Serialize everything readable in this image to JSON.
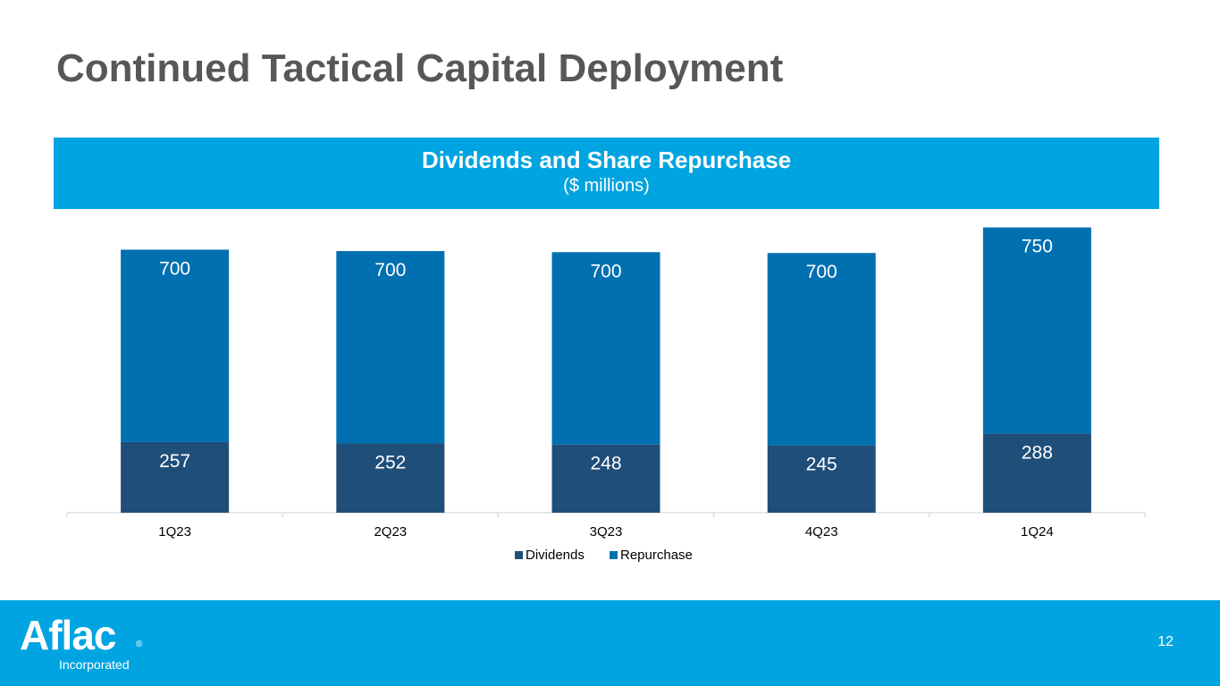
{
  "page": {
    "title": "Continued Tactical Capital Deployment",
    "page_number": "12"
  },
  "logo": {
    "wordmark": "Aflac",
    "registered": "®",
    "subtitle": "Incorporated"
  },
  "colors": {
    "accent": "#00a4e0",
    "dividends": "#1f4e79",
    "repurchase": "#0070b0",
    "title_text": "#575757"
  },
  "chart_data": {
    "type": "bar",
    "stacked": true,
    "title": "Dividends and Share Repurchase",
    "subtitle": "($ millions)",
    "categories": [
      "1Q23",
      "2Q23",
      "3Q23",
      "4Q23",
      "1Q24"
    ],
    "series": [
      {
        "name": "Dividends",
        "values": [
          257,
          252,
          248,
          245,
          288
        ]
      },
      {
        "name": "Repurchase",
        "values": [
          700,
          700,
          700,
          700,
          750
        ]
      }
    ],
    "legend_position": "bottom",
    "grid": false,
    "ylim": [
      0,
      1040
    ]
  }
}
